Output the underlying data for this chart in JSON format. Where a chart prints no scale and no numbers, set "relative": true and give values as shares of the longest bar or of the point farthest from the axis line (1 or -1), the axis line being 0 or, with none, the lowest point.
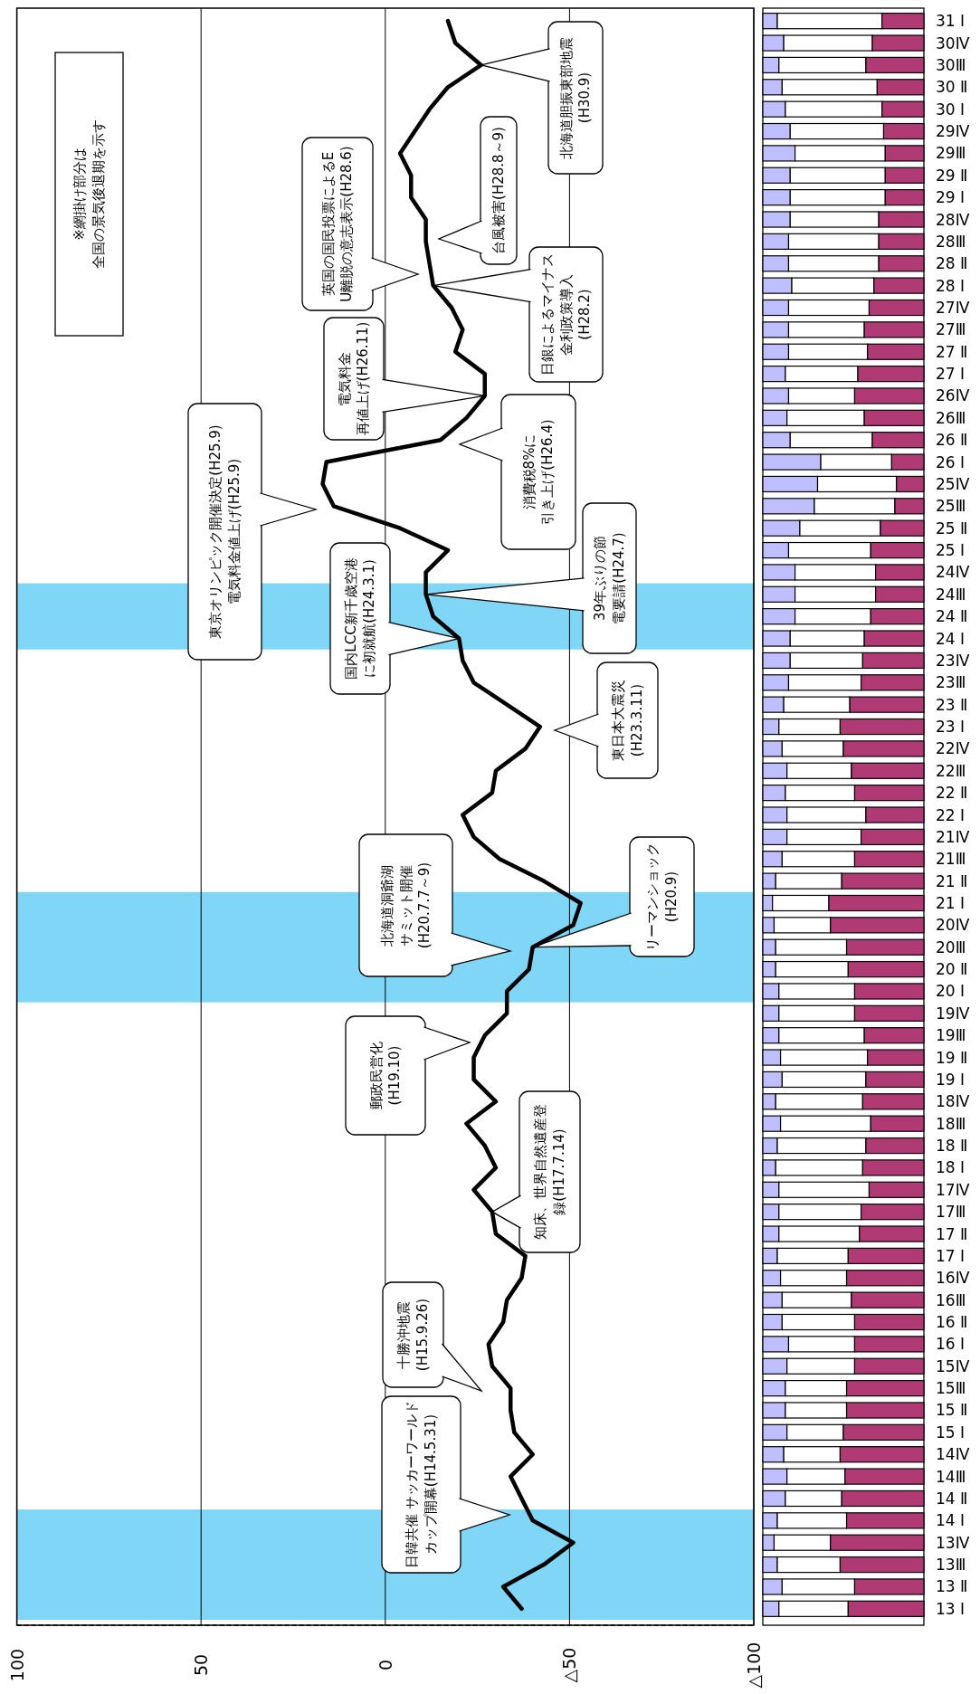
{
  "chart_data": [
    {
      "type": "line",
      "orientation": "horizontal",
      "color": "#000000",
      "tick_labels": "x",
      "grid": "x",
      "categories": [
        "31 Ⅰ",
        "30Ⅳ",
        "30Ⅲ",
        "30 Ⅱ",
        "30 Ⅰ",
        "29Ⅳ",
        "29Ⅲ",
        "29 Ⅱ",
        "29 Ⅰ",
        "28Ⅳ",
        "28Ⅲ",
        "28 Ⅱ",
        "28 Ⅰ",
        "27Ⅳ",
        "27Ⅲ",
        "27 Ⅱ",
        "27 Ⅰ",
        "26Ⅳ",
        "26Ⅲ",
        "26 Ⅱ",
        "26 Ⅰ",
        "25Ⅳ",
        "25Ⅲ",
        "25 Ⅱ",
        "25 Ⅰ",
        "24Ⅳ",
        "24Ⅲ",
        "24 Ⅱ",
        "24 Ⅰ",
        "23Ⅳ",
        "23Ⅲ",
        "23 Ⅱ",
        "23 Ⅰ",
        "22Ⅳ",
        "22Ⅲ",
        "22 Ⅱ",
        "22 Ⅰ",
        "21Ⅳ",
        "21Ⅲ",
        "21 Ⅱ",
        "21 Ⅰ",
        "20Ⅳ",
        "20Ⅲ",
        "20 Ⅱ",
        "20 Ⅰ",
        "19Ⅳ",
        "19Ⅲ",
        "19 Ⅱ",
        "19 Ⅰ",
        "18Ⅳ",
        "18Ⅲ",
        "18 Ⅱ",
        "18 Ⅰ",
        "17Ⅳ",
        "17Ⅲ",
        "17 Ⅱ",
        "17 Ⅰ",
        "16Ⅳ",
        "16Ⅲ",
        "16 Ⅱ",
        "16 Ⅰ",
        "15Ⅳ",
        "15Ⅲ",
        "15 Ⅱ",
        "15 Ⅰ",
        "14Ⅳ",
        "14Ⅲ",
        "14 Ⅱ",
        "14 Ⅰ",
        "13Ⅳ",
        "13Ⅲ",
        "13 Ⅱ",
        "13 Ⅰ"
      ],
      "values": [
        -17,
        -19,
        -26,
        -17,
        -12,
        -8,
        -4,
        -7,
        -7,
        -11,
        -11,
        -12,
        -13,
        -18,
        -21,
        -19,
        -27,
        -27,
        -22,
        -15,
        16,
        17,
        14,
        -4,
        -17,
        -11,
        -11,
        -13,
        -20,
        -21,
        -24,
        -33,
        -42,
        -38,
        -30,
        -29,
        -21,
        -24,
        -31,
        -43,
        -53,
        -51,
        -40,
        -39,
        -33,
        -33,
        -27,
        -24,
        -24,
        -30,
        -22,
        -27,
        -30,
        -24,
        -29,
        -30,
        -38,
        -37,
        -33,
        -32,
        -28,
        -29,
        -34,
        -34,
        -35,
        -40,
        -34,
        -37,
        -40,
        -51,
        -43,
        -32,
        -37
      ],
      "xlim": [
        100,
        -100
      ],
      "xticks": [
        100,
        50,
        0,
        {
          "value": -50,
          "label": "△50"
        },
        {
          "value": -100,
          "label": "△100"
        }
      ],
      "bands": [
        {
          "axis": "y",
          "from": "24Ⅲ",
          "to": "24 Ⅰ",
          "color": "#7fd6f7"
        },
        {
          "axis": "y",
          "from": "21 Ⅰ",
          "to": "20 Ⅰ",
          "color": "#7fd6f7"
        },
        {
          "axis": "y",
          "from": "14 Ⅰ",
          "to": "13 Ⅰ",
          "color": "#7fd6f7"
        }
      ],
      "annotations": [
        "※網掛け部分は全国の景気後退期を示す",
        {
          "text": "北海道胆振東部地震(H30.9)",
          "x": -26,
          "y": "30Ⅲ"
        },
        "台風被害(H28.8～9)",
        "英国の国民投票によるEU離脱の意志表示(H28.6)",
        {
          "text": "日銀によるマイナス金利政策導入(H28.2)",
          "x": -13,
          "y": "28 Ⅰ"
        },
        {
          "text": "電気料金再値上げ(H26.11)",
          "x": -27,
          "y": "26Ⅳ"
        },
        "消費税8%に引き上げ(H26.4)",
        "東京オリンピック開催決定(H25.9)電気料金値上げ(H25.9)",
        {
          "text": "国内LCC新千歳空港に初就航(H24.3.1)",
          "x": -20,
          "y": "24 Ⅰ"
        },
        {
          "text": "39年ぶりの節電要請(H24.7)",
          "x": -11,
          "y": "24Ⅲ"
        },
        "東日本大震災(H23.3.11)",
        "北海道洞爺湖サミット開催(H20.7.7～9)",
        {
          "text": "リーマンショック(H20.9)",
          "x": -40,
          "y": "20Ⅲ"
        },
        "郵政民営化(H19.10)",
        {
          "text": "知床、世界自然遺産登録(H17.7.14)",
          "x": -29,
          "y": "17Ⅲ"
        },
        "十勝沖地震(H15.9.26)",
        "日韓共催 サッカーワールドカップ開幕(H14.5.31)"
      ]
    },
    {
      "type": "bar",
      "orientation": "horizontal",
      "stacked": true,
      "relative": true,
      "tick_labels": "y",
      "categories": [
        "31 Ⅰ",
        "30Ⅳ",
        "30Ⅲ",
        "30 Ⅱ",
        "30 Ⅰ",
        "29Ⅳ",
        "29Ⅲ",
        "29 Ⅱ",
        "29 Ⅰ",
        "28Ⅳ",
        "28Ⅲ",
        "28 Ⅱ",
        "28 Ⅰ",
        "27Ⅳ",
        "27Ⅲ",
        "27 Ⅱ",
        "27 Ⅰ",
        "26Ⅳ",
        "26Ⅲ",
        "26 Ⅱ",
        "26 Ⅰ",
        "25Ⅳ",
        "25Ⅲ",
        "25 Ⅱ",
        "25 Ⅰ",
        "24Ⅳ",
        "24Ⅲ",
        "24 Ⅱ",
        "24 Ⅰ",
        "23Ⅳ",
        "23Ⅲ",
        "23 Ⅱ",
        "23 Ⅰ",
        "22Ⅳ",
        "22Ⅲ",
        "22 Ⅱ",
        "22 Ⅰ",
        "21Ⅳ",
        "21Ⅲ",
        "21 Ⅱ",
        "21 Ⅰ",
        "20Ⅳ",
        "20Ⅲ",
        "20 Ⅱ",
        "20 Ⅰ",
        "19Ⅳ",
        "19Ⅲ",
        "19 Ⅱ",
        "19 Ⅰ",
        "18Ⅳ",
        "18Ⅲ",
        "18 Ⅱ",
        "18 Ⅰ",
        "17Ⅳ",
        "17Ⅲ",
        "17 Ⅱ",
        "17 Ⅰ",
        "16Ⅳ",
        "16Ⅲ",
        "16 Ⅱ",
        "16 Ⅰ",
        "15Ⅳ",
        "15Ⅲ",
        "15 Ⅱ",
        "15 Ⅰ",
        "14Ⅳ",
        "14Ⅲ",
        "14 Ⅱ",
        "14 Ⅰ",
        "13Ⅳ",
        "13Ⅲ",
        "13 Ⅱ",
        "13 Ⅰ"
      ],
      "series": [
        {
          "color": "#bfbfff",
          "values": [
            0.09,
            0.13,
            0.1,
            0.12,
            0.14,
            0.17,
            0.2,
            0.17,
            0.17,
            0.17,
            0.16,
            0.16,
            0.18,
            0.16,
            0.16,
            0.16,
            0.14,
            0.16,
            0.15,
            0.17,
            0.36,
            0.34,
            0.32,
            0.23,
            0.16,
            0.2,
            0.2,
            0.2,
            0.17,
            0.17,
            0.16,
            0.13,
            0.1,
            0.12,
            0.15,
            0.14,
            0.15,
            0.15,
            0.12,
            0.08,
            0.06,
            0.07,
            0.08,
            0.08,
            0.1,
            0.1,
            0.1,
            0.11,
            0.12,
            0.08,
            0.11,
            0.09,
            0.08,
            0.1,
            0.1,
            0.1,
            0.09,
            0.11,
            0.12,
            0.12,
            0.16,
            0.15,
            0.14,
            0.14,
            0.15,
            0.13,
            0.15,
            0.14,
            0.09,
            0.07,
            0.09,
            0.12,
            0.1
          ]
        },
        {
          "color": "#ffffff",
          "values": [
            0.65,
            0.55,
            0.54,
            0.59,
            0.6,
            0.58,
            0.56,
            0.59,
            0.59,
            0.55,
            0.56,
            0.56,
            0.51,
            0.5,
            0.47,
            0.49,
            0.45,
            0.41,
            0.48,
            0.51,
            0.44,
            0.49,
            0.5,
            0.5,
            0.51,
            0.5,
            0.5,
            0.47,
            0.46,
            0.45,
            0.45,
            0.41,
            0.38,
            0.38,
            0.4,
            0.43,
            0.49,
            0.46,
            0.45,
            0.41,
            0.35,
            0.35,
            0.44,
            0.45,
            0.47,
            0.47,
            0.53,
            0.54,
            0.52,
            0.54,
            0.56,
            0.55,
            0.54,
            0.56,
            0.51,
            0.5,
            0.44,
            0.41,
            0.43,
            0.45,
            0.41,
            0.42,
            0.38,
            0.38,
            0.35,
            0.35,
            0.36,
            0.35,
            0.43,
            0.35,
            0.39,
            0.45,
            0.43
          ]
        },
        {
          "color": "#b03a74",
          "values": [
            0.26,
            0.32,
            0.36,
            0.29,
            0.26,
            0.25,
            0.24,
            0.24,
            0.24,
            0.28,
            0.28,
            0.28,
            0.31,
            0.34,
            0.37,
            0.35,
            0.41,
            0.43,
            0.37,
            0.32,
            0.2,
            0.17,
            0.18,
            0.27,
            0.33,
            0.3,
            0.3,
            0.33,
            0.37,
            0.38,
            0.39,
            0.46,
            0.52,
            0.5,
            0.45,
            0.43,
            0.36,
            0.39,
            0.43,
            0.51,
            0.59,
            0.58,
            0.48,
            0.47,
            0.43,
            0.43,
            0.37,
            0.35,
            0.36,
            0.38,
            0.33,
            0.36,
            0.38,
            0.34,
            0.39,
            0.4,
            0.47,
            0.48,
            0.45,
            0.43,
            0.43,
            0.43,
            0.48,
            0.48,
            0.5,
            0.52,
            0.49,
            0.51,
            0.48,
            0.58,
            0.52,
            0.43,
            0.47
          ]
        }
      ]
    }
  ]
}
